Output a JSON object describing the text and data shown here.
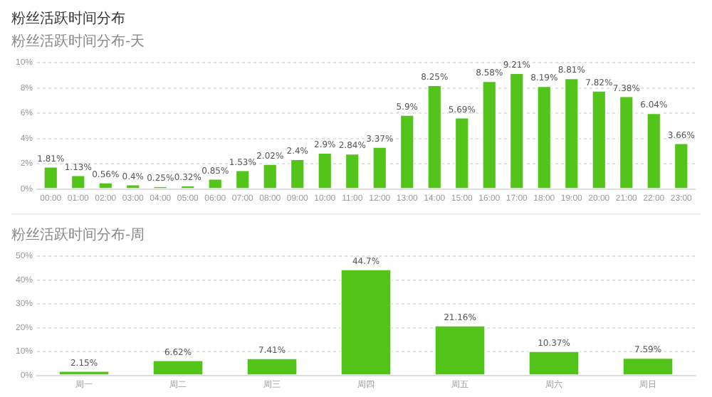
{
  "chart_data": [
    {
      "type": "bar",
      "title": "粉丝活跃时间分布",
      "subtitle": "粉丝活跃时间分布-天",
      "categories": [
        "00:00",
        "01:00",
        "02:00",
        "03:00",
        "04:00",
        "05:00",
        "06:00",
        "07:00",
        "08:00",
        "09:00",
        "10:00",
        "11:00",
        "12:00",
        "13:00",
        "14:00",
        "15:00",
        "16:00",
        "17:00",
        "18:00",
        "19:00",
        "20:00",
        "21:00",
        "22:00",
        "23:00"
      ],
      "values": [
        1.81,
        1.13,
        0.56,
        0.4,
        0.25,
        0.32,
        0.85,
        1.53,
        2.02,
        2.4,
        2.9,
        2.84,
        3.37,
        5.9,
        8.25,
        5.69,
        8.58,
        9.21,
        8.19,
        8.81,
        7.82,
        7.38,
        6.04,
        3.66
      ],
      "value_labels": [
        "1.81%",
        "1.13%",
        "0.56%",
        "0.4%",
        "0.25%",
        "0.32%",
        "0.85%",
        "1.53%",
        "2.02%",
        "2.4%",
        "2.9%",
        "2.84%",
        "3.37%",
        "5.9%",
        "8.25%",
        "5.69%",
        "8.58%",
        "9.21%",
        "8.19%",
        "8.81%",
        "7.82%",
        "7.38%",
        "6.04%",
        "3.66%"
      ],
      "color": "#52c41a",
      "ylim": [
        0,
        10
      ],
      "yticks": [
        {
          "value": 0,
          "label": "0%"
        },
        {
          "value": 2,
          "label": "2%"
        },
        {
          "value": 4,
          "label": "4%"
        },
        {
          "value": 6,
          "label": "6%"
        },
        {
          "value": 8,
          "label": "8%"
        },
        {
          "value": 10,
          "label": "10%"
        }
      ],
      "grid": "y",
      "legend": false
    },
    {
      "type": "bar",
      "subtitle": "粉丝活跃时间分布-周",
      "categories": [
        "周一",
        "周二",
        "周三",
        "周四",
        "周五",
        "周六",
        "周日"
      ],
      "values": [
        2.15,
        6.62,
        7.41,
        44.7,
        21.16,
        10.37,
        7.59
      ],
      "value_labels": [
        "2.15%",
        "6.62%",
        "7.41%",
        "44.7%",
        "21.16%",
        "10.37%",
        "7.59%"
      ],
      "color": "#52c41a",
      "ylim": [
        0,
        50
      ],
      "yticks": [
        {
          "value": 0,
          "label": "0%"
        },
        {
          "value": 10,
          "label": "10%"
        },
        {
          "value": 20,
          "label": "20%"
        },
        {
          "value": 30,
          "label": "30%"
        },
        {
          "value": 40,
          "label": "40%"
        },
        {
          "value": 50,
          "label": "50%"
        }
      ],
      "grid": "y",
      "legend": false
    }
  ]
}
